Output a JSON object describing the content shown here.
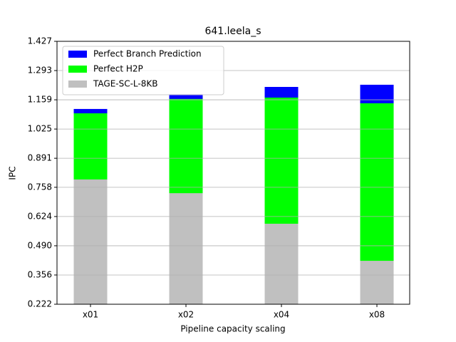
{
  "chart_data": {
    "type": "bar",
    "title": "641.leela_s",
    "xlabel": "Pipeline capacity scaling",
    "ylabel": "IPC",
    "categories": [
      "x01",
      "x02",
      "x04",
      "x08"
    ],
    "series": [
      {
        "name": "Perfect Branch Prediction",
        "color": "#0000ff",
        "values": [
          1.117,
          1.185,
          1.218,
          1.228
        ]
      },
      {
        "name": "Perfect H2P",
        "color": "#00ff00",
        "values": [
          1.097,
          1.163,
          1.169,
          1.143
        ]
      },
      {
        "name": "TAGE-SC-L-8KB",
        "color": "#c0c0c0",
        "values": [
          0.794,
          0.731,
          0.591,
          0.421
        ]
      }
    ],
    "ylim": [
      0.222,
      1.427
    ],
    "yticks": [
      0.222,
      0.356,
      {
        "value": 0.49,
        "label": "0.490"
      },
      0.624,
      0.758,
      0.891,
      1.025,
      1.159,
      1.293,
      1.427
    ],
    "grid": true,
    "legend": "upper left"
  }
}
